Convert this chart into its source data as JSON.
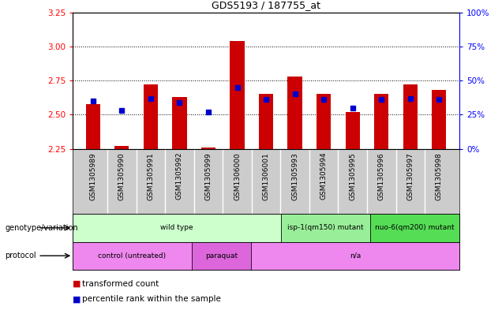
{
  "title": "GDS5193 / 187755_at",
  "samples": [
    "GSM1305989",
    "GSM1305990",
    "GSM1305991",
    "GSM1305992",
    "GSM1305999",
    "GSM1306000",
    "GSM1306001",
    "GSM1305993",
    "GSM1305994",
    "GSM1305995",
    "GSM1305996",
    "GSM1305997",
    "GSM1305998"
  ],
  "transformed_count": [
    2.58,
    2.27,
    2.72,
    2.63,
    2.26,
    3.04,
    2.65,
    2.78,
    2.65,
    2.52,
    2.65,
    2.72,
    2.68
  ],
  "percentile_rank": [
    35,
    28,
    37,
    34,
    27,
    45,
    36,
    40,
    36,
    30,
    36,
    37,
    36
  ],
  "ylim": [
    2.25,
    3.25
  ],
  "yticks": [
    2.25,
    2.5,
    2.75,
    3.0,
    3.25
  ],
  "right_yticks": [
    0,
    25,
    50,
    75,
    100
  ],
  "right_ylim": [
    0,
    100
  ],
  "bar_color": "#cc0000",
  "dot_color": "#0000cc",
  "sample_bg_color": "#cccccc",
  "plot_bg": "#ffffff",
  "genotype_groups": [
    {
      "label": "wild type",
      "start": 0,
      "end": 7,
      "color": "#ccffcc"
    },
    {
      "label": "isp-1(qm150) mutant",
      "start": 7,
      "end": 10,
      "color": "#99ee99"
    },
    {
      "label": "nuo-6(qm200) mutant",
      "start": 10,
      "end": 13,
      "color": "#55dd55"
    }
  ],
  "protocol_groups": [
    {
      "label": "control (untreated)",
      "start": 0,
      "end": 4,
      "color": "#ee88ee"
    },
    {
      "label": "paraquat",
      "start": 4,
      "end": 6,
      "color": "#dd66dd"
    },
    {
      "label": "n/a",
      "start": 6,
      "end": 13,
      "color": "#ee88ee"
    }
  ],
  "gridline_color": "#000000",
  "fig_width": 6.36,
  "fig_height": 3.93,
  "dpi": 100
}
